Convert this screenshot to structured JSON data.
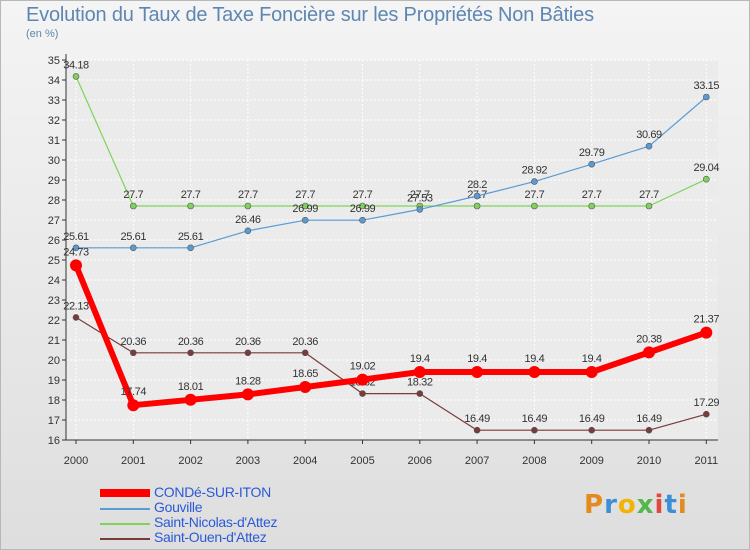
{
  "title": "Evolution du Taux de Taxe Foncière sur les Propriétés Non Bâties",
  "subtitle": "(en %)",
  "logo": "Proxiti",
  "chart_data": {
    "type": "line",
    "categories": [
      "2000",
      "2001",
      "2002",
      "2003",
      "2004",
      "2005",
      "2006",
      "2007",
      "2008",
      "2009",
      "2010",
      "2011"
    ],
    "ylim": [
      16,
      35
    ],
    "yticks": [
      16,
      17,
      18,
      19,
      20,
      21,
      22,
      23,
      24,
      25,
      26,
      27,
      28,
      29,
      30,
      31,
      32,
      33,
      34,
      35
    ],
    "grid": true,
    "legend_position": "bottom-left",
    "series": [
      {
        "name": "CONDé-SUR-ITON",
        "color": "#ff0000",
        "values": [
          24.73,
          17.74,
          18.01,
          18.28,
          18.65,
          19.02,
          19.4,
          19.4,
          19.4,
          19.4,
          20.38,
          21.37
        ],
        "labels": [
          "24.73",
          "17.74",
          "18.01",
          "18.28",
          "18.65",
          "19.02",
          "19.4",
          "19.4",
          "19.4",
          "19.4",
          "20.38",
          "21.37"
        ]
      },
      {
        "name": "Gouville",
        "color": "#5b9bd5",
        "values": [
          25.61,
          25.61,
          25.61,
          26.46,
          26.99,
          26.99,
          27.53,
          28.2,
          28.92,
          29.79,
          30.69,
          33.15
        ],
        "labels": [
          "25.61",
          "25.61",
          "25.61",
          "26.46",
          "26.99",
          "26.99",
          "27.53",
          "28.2",
          "28.92",
          "29.79",
          "30.69",
          "33.15"
        ]
      },
      {
        "name": "Saint-Nicolas-d'Attez",
        "color": "#7fd35a",
        "values": [
          34.18,
          27.7,
          27.7,
          27.7,
          27.7,
          27.7,
          27.7,
          27.7,
          27.7,
          27.7,
          27.7,
          29.04
        ],
        "labels": [
          "34.18",
          "27.7",
          "27.7",
          "27.7",
          "27.7",
          "27.7",
          "27.7",
          "27.7",
          "27.7",
          "27.7",
          "27.7",
          "29.04"
        ]
      },
      {
        "name": "Saint-Ouen-d'Attez",
        "color": "#7a3b3b",
        "values": [
          22.13,
          20.36,
          20.36,
          20.36,
          20.36,
          18.32,
          18.32,
          16.49,
          16.49,
          16.49,
          16.49,
          17.29
        ],
        "labels": [
          "22.13",
          "20.36",
          "20.36",
          "20.36",
          "20.36",
          "18.32",
          "18.32",
          "16.49",
          "16.49",
          "16.49",
          "16.49",
          "17.29"
        ]
      }
    ]
  }
}
